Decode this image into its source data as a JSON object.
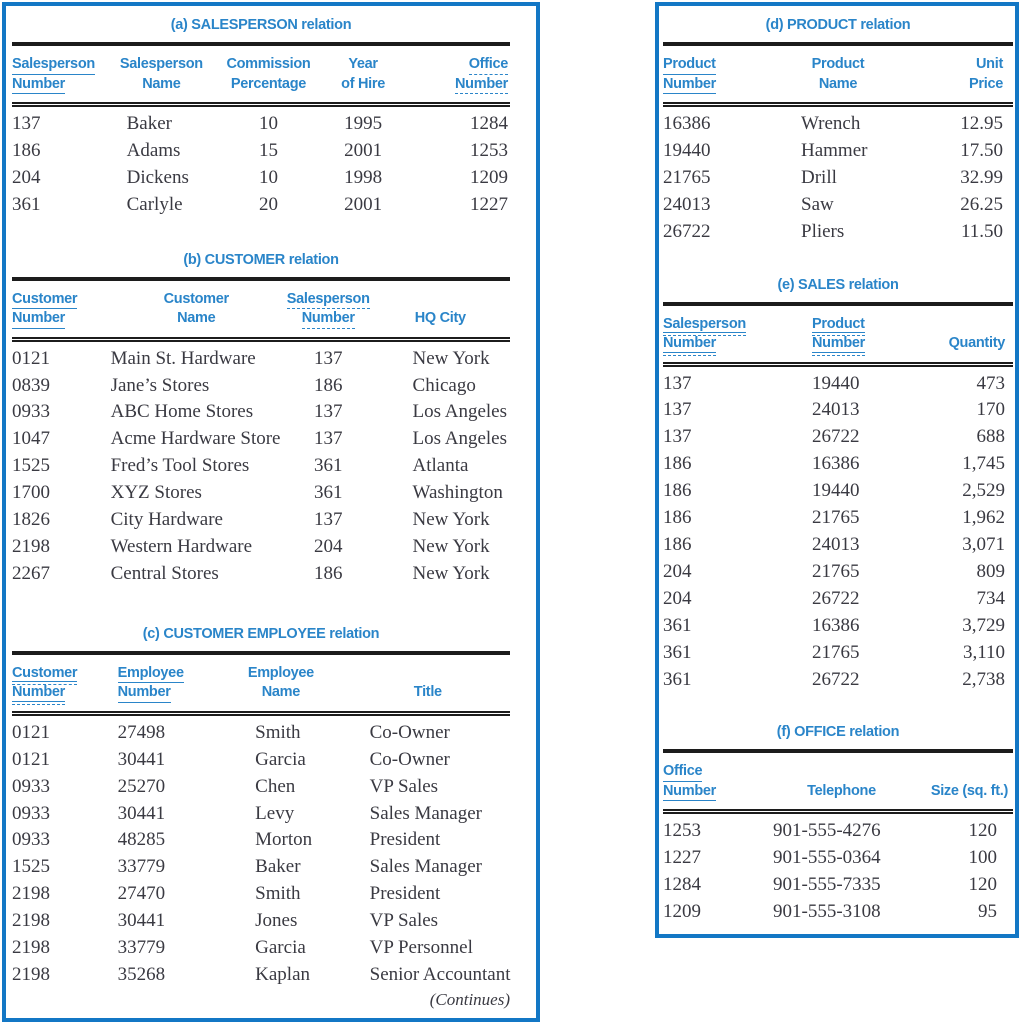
{
  "styles": {
    "panel_border_color": "#1377c5",
    "heading_color": "#2a85c9",
    "rule_color": "#1c1c1c",
    "data_text_color": "#3a3a42",
    "background": "#ffffff"
  },
  "panels": [
    {
      "name": "left-panel",
      "footnote": "(Continues)",
      "sections": [
        {
          "id": "a",
          "title": "(a) SALESPERSON relation",
          "columns": [
            {
              "lines": [
                "Salesperson",
                "Number"
              ],
              "key": "solid",
              "width": "19%",
              "h_align": "left",
              "d_align": "left"
            },
            {
              "lines": [
                "Salesperson",
                "Name"
              ],
              "key": "none",
              "width": "22%",
              "h_align": "center",
              "d_align": "left",
              "d_indent": 20
            },
            {
              "lines": [
                "Commission",
                "Percentage"
              ],
              "key": "none",
              "width": "21%",
              "h_align": "center",
              "d_align": "center"
            },
            {
              "lines": [
                "Year",
                "of Hire"
              ],
              "key": "none",
              "width": "17%",
              "h_align": "center",
              "d_align": "center"
            },
            {
              "lines": [
                "Office",
                "Number"
              ],
              "key": "dashed",
              "width": "21%",
              "h_align": "right",
              "h_rpad": 2,
              "d_align": "right",
              "d_rpad": 2
            }
          ],
          "rows": [
            [
              "137",
              "Baker",
              "10",
              "1995",
              "1284"
            ],
            [
              "186",
              "Adams",
              "15",
              "2001",
              "1253"
            ],
            [
              "204",
              "Dickens",
              "10",
              "1998",
              "1209"
            ],
            [
              "361",
              "Carlyle",
              "20",
              "2001",
              "1227"
            ]
          ]
        },
        {
          "id": "b",
          "title": "(b) CUSTOMER relation",
          "columns": [
            {
              "lines": [
                "Customer",
                "Number"
              ],
              "key": "solid",
              "width": "19%",
              "h_align": "left",
              "d_align": "left"
            },
            {
              "lines": [
                "Customer",
                "Name"
              ],
              "key": "none",
              "width": "36%",
              "h_align": "center",
              "d_align": "left",
              "d_indent": 4
            },
            {
              "lines": [
                "Salesperson",
                "Number"
              ],
              "key": "dashed",
              "width": "17%",
              "h_align": "center",
              "d_align": "center"
            },
            {
              "lines": [
                "HQ City"
              ],
              "key": "none",
              "width": "28%",
              "h_align": "center",
              "d_align": "left",
              "d_indent": 42
            }
          ],
          "rows": [
            [
              "0121",
              "Main St. Hardware",
              "137",
              "New York"
            ],
            [
              "0839",
              "Jane’s Stores",
              "186",
              "Chicago"
            ],
            [
              "0933",
              "ABC Home Stores",
              "137",
              "Los Angeles"
            ],
            [
              "1047",
              "Acme Hardware Store",
              "137",
              "Los Angeles"
            ],
            [
              "1525",
              "Fred’s Tool Stores",
              "361",
              "Atlanta"
            ],
            [
              "1700",
              "XYZ Stores",
              "361",
              "Washington"
            ],
            [
              "1826",
              "City Hardware",
              "137",
              "New York"
            ],
            [
              "2198",
              "Western Hardware",
              "204",
              "New York"
            ],
            [
              "2267",
              "Central Stores",
              "186",
              "New York"
            ]
          ]
        },
        {
          "id": "c",
          "title": "(c) CUSTOMER EMPLOYEE relation",
          "columns": [
            {
              "lines": [
                "Customer",
                "Number"
              ],
              "key": "solid-dashed",
              "width": "19%",
              "h_align": "left",
              "d_align": "left"
            },
            {
              "lines": [
                "Employee",
                "Number"
              ],
              "key": "solid",
              "width": "22%",
              "h_align": "left",
              "h_indent": 11,
              "d_align": "left",
              "d_indent": 11
            },
            {
              "lines": [
                "Employee",
                "Name"
              ],
              "key": "none",
              "width": "26%",
              "h_align": "center",
              "d_align": "left",
              "d_indent": 39
            },
            {
              "lines": [
                "Title"
              ],
              "key": "none",
              "width": "33%",
              "h_align": "center",
              "d_align": "left",
              "d_indent": 24
            }
          ],
          "rows": [
            [
              "0121",
              "27498",
              "Smith",
              "Co-Owner"
            ],
            [
              "0121",
              "30441",
              "Garcia",
              "Co-Owner"
            ],
            [
              "0933",
              "25270",
              "Chen",
              "VP Sales"
            ],
            [
              "0933",
              "30441",
              "Levy",
              "Sales Manager"
            ],
            [
              "0933",
              "48285",
              "Morton",
              "President"
            ],
            [
              "1525",
              "33779",
              "Baker",
              "Sales Manager"
            ],
            [
              "2198",
              "27470",
              "Smith",
              "President"
            ],
            [
              "2198",
              "30441",
              "Jones",
              "VP Sales"
            ],
            [
              "2198",
              "33779",
              "Garcia",
              "VP Personnel"
            ],
            [
              "2198",
              "35268",
              "Kaplan",
              "Senior Accountant"
            ]
          ]
        }
      ]
    },
    {
      "name": "right-panel",
      "sections": [
        {
          "id": "d",
          "title": "(d) PRODUCT relation",
          "columns": [
            {
              "lines": [
                "Product",
                "Number"
              ],
              "key": "solid",
              "width": "28%",
              "h_align": "left",
              "d_align": "left"
            },
            {
              "lines": [
                "Product",
                "Name"
              ],
              "key": "none",
              "width": "44%",
              "h_align": "center",
              "d_align": "left",
              "d_indent": 40
            },
            {
              "lines": [
                "Unit",
                "Price"
              ],
              "key": "none",
              "width": "28%",
              "h_align": "right",
              "h_rpad": 10,
              "d_align": "right",
              "d_rpad": 10
            }
          ],
          "rows": [
            [
              "16386",
              "Wrench",
              "12.95"
            ],
            [
              "19440",
              "Hammer",
              "17.50"
            ],
            [
              "21765",
              "Drill",
              "32.99"
            ],
            [
              "24013",
              "Saw",
              "26.25"
            ],
            [
              "26722",
              "Pliers",
              "11.50"
            ]
          ]
        },
        {
          "id": "e",
          "title": "(e) SALES relation",
          "columns": [
            {
              "lines": [
                "Salesperson",
                "Number"
              ],
              "key": "solid-dashed",
              "width": "30%",
              "h_align": "left",
              "d_align": "left"
            },
            {
              "lines": [
                "Product",
                "Number"
              ],
              "key": "solid-dashed",
              "width": "38%",
              "h_align": "left",
              "h_indent": 44,
              "d_align": "left",
              "d_indent": 44
            },
            {
              "lines": [
                "Quantity"
              ],
              "key": "none",
              "width": "32%",
              "h_align": "right",
              "h_rpad": 8,
              "d_align": "right",
              "d_rpad": 8
            }
          ],
          "rows": [
            [
              "137",
              "19440",
              "473"
            ],
            [
              "137",
              "24013",
              "170"
            ],
            [
              "137",
              "26722",
              "688"
            ],
            [
              "186",
              "16386",
              "1,745"
            ],
            [
              "186",
              "19440",
              "2,529"
            ],
            [
              "186",
              "21765",
              "1,962"
            ],
            [
              "186",
              "24013",
              "3,071"
            ],
            [
              "204",
              "21765",
              "809"
            ],
            [
              "204",
              "26722",
              "734"
            ],
            [
              "361",
              "16386",
              "3,729"
            ],
            [
              "361",
              "21765",
              "3,110"
            ],
            [
              "361",
              "26722",
              "2,738"
            ]
          ]
        },
        {
          "id": "f",
          "title": "(f) OFFICE relation",
          "columns": [
            {
              "lines": [
                "Office",
                "Number"
              ],
              "key": "solid",
              "width": "28%",
              "h_align": "left",
              "d_align": "left"
            },
            {
              "lines": [
                "Telephone"
              ],
              "key": "none",
              "width": "46%",
              "h_align": "center",
              "d_align": "left",
              "d_indent": 12
            },
            {
              "lines": [
                "Size (sq. ft.)"
              ],
              "key": "none",
              "width": "26%",
              "h_align": "right",
              "h_rpad": 5,
              "d_align": "right",
              "d_rpad": 16
            }
          ],
          "rows": [
            [
              "1253",
              "901-555-4276",
              "120"
            ],
            [
              "1227",
              "901-555-0364",
              "100"
            ],
            [
              "1284",
              "901-555-7335",
              "120"
            ],
            [
              "1209",
              "901-555-3108",
              "95"
            ]
          ]
        }
      ]
    }
  ]
}
